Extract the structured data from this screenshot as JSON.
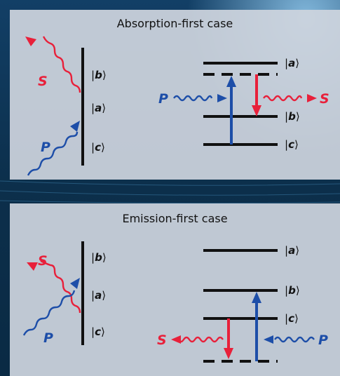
{
  "colors": {
    "pump": "#1d4ea8",
    "stokes": "#e8203a",
    "line": "#111111",
    "panel": "#cdd4de"
  },
  "panels": [
    {
      "title": "Absorption-first case",
      "left_levels": [
        "b",
        "a",
        "c"
      ],
      "right_levels": [
        "a",
        "b",
        "c"
      ],
      "pump_label": "P",
      "stokes_label": "S"
    },
    {
      "title": "Emission-first case",
      "left_levels": [
        "b",
        "a",
        "c"
      ],
      "right_levels": [
        "a",
        "b",
        "c"
      ],
      "pump_label": "P",
      "stokes_label": "S"
    }
  ]
}
